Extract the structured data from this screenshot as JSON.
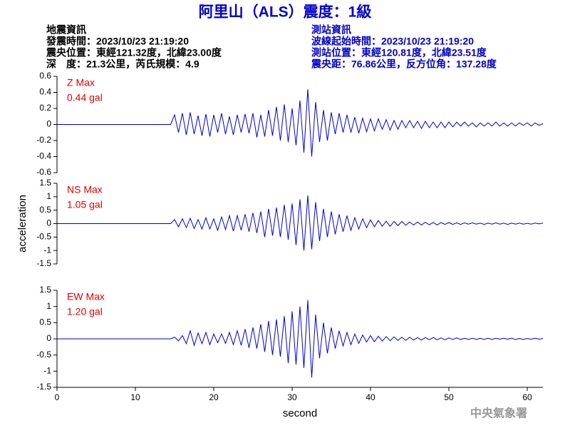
{
  "title": "阿里山（ALS）震度：1級",
  "event_info": [
    "地震資訊",
    "發震時間：2023/10/23 21:19:20",
    "震央位置：東經121.32度，北緯23.00度",
    "深　度：21.3公里，芮氏規模：4.9"
  ],
  "station_info": [
    "測站資訊",
    "波線起始時間：2023/10/23 21:19:20",
    "測站位置：東經120.81度，北緯23.51度",
    "震央距：76.86公里，反方位角：137.28度"
  ],
  "footer": "中央氣象署",
  "chart_data": [
    {
      "type": "line",
      "annotation": [
        "Z Max",
        "0.44 gal"
      ],
      "color": "#0000cc",
      "xlim": [
        0,
        62
      ],
      "ylim": [
        -0.6,
        0.6
      ],
      "yticks": [
        -0.6,
        -0.4,
        -0.2,
        0,
        0.2,
        0.4,
        0.6
      ],
      "x": [
        0,
        14.5,
        15,
        15.5,
        16,
        16.5,
        17,
        17.5,
        18,
        18.5,
        19,
        19.5,
        20,
        20.5,
        21,
        21.5,
        22,
        22.5,
        23,
        23.5,
        24,
        24.5,
        25,
        25.5,
        26,
        26.5,
        27,
        27.5,
        28,
        28.5,
        29,
        29.5,
        30,
        30.5,
        31,
        31.5,
        32,
        32.5,
        33,
        33.5,
        34,
        34.5,
        35,
        35.5,
        36,
        36.5,
        37,
        37.5,
        38,
        38.5,
        39,
        39.5,
        40,
        40.5,
        41,
        41.5,
        42,
        42.5,
        43,
        43.5,
        44,
        44.5,
        45,
        45.5,
        46,
        46.5,
        47,
        47.5,
        48,
        48.5,
        49,
        49.5,
        50,
        50.5,
        51,
        51.5,
        52,
        52.5,
        53,
        53.5,
        54,
        54.5,
        55,
        55.5,
        56,
        56.5,
        57,
        57.5,
        58,
        58.5,
        59,
        59.5,
        60,
        60.5,
        61,
        61.5,
        62
      ],
      "values": [
        0,
        0,
        0.12,
        -0.1,
        0.14,
        -0.13,
        0.15,
        -0.12,
        0.11,
        -0.14,
        0.13,
        -0.15,
        0.12,
        -0.1,
        0.14,
        -0.12,
        0.1,
        -0.13,
        0.12,
        -0.1,
        0.13,
        -0.11,
        0.14,
        -0.16,
        0.12,
        -0.15,
        0.18,
        -0.14,
        0.22,
        -0.2,
        0.25,
        -0.22,
        0.2,
        -0.26,
        0.3,
        -0.35,
        0.44,
        -0.4,
        0.28,
        -0.22,
        0.18,
        -0.2,
        0.15,
        -0.12,
        0.14,
        -0.1,
        0.12,
        -0.1,
        0.09,
        -0.11,
        0.08,
        -0.09,
        0.07,
        -0.08,
        0.07,
        -0.06,
        0.06,
        -0.07,
        0.05,
        -0.06,
        0.05,
        -0.04,
        0.05,
        -0.04,
        0.04,
        -0.05,
        0.04,
        -0.04,
        0.03,
        -0.04,
        0.03,
        -0.04,
        0.03,
        -0.03,
        0.03,
        -0.02,
        0.03,
        -0.02,
        0.02,
        -0.03,
        0.02,
        -0.02,
        0.02,
        -0.02,
        0.03,
        -0.02,
        0.02,
        -0.02,
        0.02,
        -0.02,
        0.02,
        -0.01,
        0.02,
        -0.02,
        0.02,
        -0.01,
        0.01
      ]
    },
    {
      "type": "line",
      "annotation": [
        "NS Max",
        "1.05 gal"
      ],
      "color": "#0000cc",
      "ylabel": "acceleration",
      "xlim": [
        0,
        62
      ],
      "ylim": [
        -1.5,
        1.5
      ],
      "yticks": [
        -1.5,
        -1,
        -0.5,
        0,
        0.5,
        1,
        1.5
      ],
      "x": [
        0,
        14.5,
        15,
        15.5,
        16,
        16.5,
        17,
        17.5,
        18,
        18.5,
        19,
        19.5,
        20,
        20.5,
        21,
        21.5,
        22,
        22.5,
        23,
        23.5,
        24,
        24.5,
        25,
        25.5,
        26,
        26.5,
        27,
        27.5,
        28,
        28.5,
        29,
        29.5,
        30,
        30.5,
        31,
        31.5,
        32,
        32.5,
        33,
        33.5,
        34,
        34.5,
        35,
        35.5,
        36,
        36.5,
        37,
        37.5,
        38,
        38.5,
        39,
        39.5,
        40,
        40.5,
        41,
        41.5,
        42,
        42.5,
        43,
        43.5,
        44,
        44.5,
        45,
        45.5,
        46,
        46.5,
        47,
        47.5,
        48,
        48.5,
        49,
        49.5,
        50,
        50.5,
        51,
        51.5,
        52,
        52.5,
        53,
        53.5,
        54,
        54.5,
        55,
        55.5,
        56,
        56.5,
        57,
        57.5,
        58,
        58.5,
        59,
        59.5,
        60,
        60.5,
        61,
        61.5,
        62
      ],
      "values": [
        0,
        0,
        0.15,
        -0.12,
        0.18,
        -0.15,
        0.2,
        -0.18,
        0.15,
        -0.2,
        0.22,
        -0.2,
        0.18,
        -0.25,
        0.25,
        -0.22,
        0.3,
        -0.28,
        0.3,
        -0.25,
        0.35,
        -0.3,
        0.4,
        -0.35,
        0.45,
        -0.5,
        0.55,
        -0.45,
        0.6,
        -0.5,
        0.7,
        -0.6,
        0.75,
        -0.8,
        0.9,
        -1.0,
        1.05,
        -0.95,
        0.8,
        -0.65,
        0.55,
        -0.5,
        0.45,
        -0.4,
        0.35,
        -0.3,
        0.3,
        -0.25,
        0.22,
        -0.2,
        0.18,
        -0.15,
        0.14,
        -0.12,
        0.12,
        -0.1,
        0.09,
        -0.1,
        0.08,
        -0.07,
        0.08,
        -0.06,
        0.06,
        -0.05,
        0.06,
        -0.05,
        0.05,
        -0.04,
        0.04,
        -0.05,
        0.04,
        -0.03,
        0.04,
        -0.03,
        0.03,
        -0.03,
        0.03,
        -0.02,
        0.03,
        -0.02,
        0.02,
        -0.03,
        0.02,
        -0.02,
        0.03,
        -0.02,
        0.02,
        -0.03,
        0.02,
        -0.02,
        0.02,
        -0.02,
        0.01,
        -0.02,
        0.02,
        -0.01,
        0.02
      ]
    },
    {
      "type": "line",
      "annotation": [
        "EW Max",
        "1.20 gal"
      ],
      "color": "#0000cc",
      "xlabel": "second",
      "xlim": [
        0,
        62
      ],
      "xticks": [
        0,
        10,
        20,
        30,
        40,
        50,
        60
      ],
      "ylim": [
        -1.5,
        1.5
      ],
      "yticks": [
        -1.5,
        -1,
        -0.5,
        0,
        0.5,
        1,
        1.5
      ],
      "x": [
        0,
        14.5,
        15,
        15.5,
        16,
        16.5,
        17,
        17.5,
        18,
        18.5,
        19,
        19.5,
        20,
        20.5,
        21,
        21.5,
        22,
        22.5,
        23,
        23.5,
        24,
        24.5,
        25,
        25.5,
        26,
        26.5,
        27,
        27.5,
        28,
        28.5,
        29,
        29.5,
        30,
        30.5,
        31,
        31.5,
        32,
        32.5,
        33,
        33.5,
        34,
        34.5,
        35,
        35.5,
        36,
        36.5,
        37,
        37.5,
        38,
        38.5,
        39,
        39.5,
        40,
        40.5,
        41,
        41.5,
        42,
        42.5,
        43,
        43.5,
        44,
        44.5,
        45,
        45.5,
        46,
        46.5,
        47,
        47.5,
        48,
        48.5,
        49,
        49.5,
        50,
        50.5,
        51,
        51.5,
        52,
        52.5,
        53,
        53.5,
        54,
        54.5,
        55,
        55.5,
        56,
        56.5,
        57,
        57.5,
        58,
        58.5,
        59,
        59.5,
        60,
        60.5,
        61,
        61.5,
        62
      ],
      "values": [
        0,
        0,
        0.05,
        -0.06,
        0.1,
        -0.15,
        0.25,
        -0.2,
        0.18,
        -0.15,
        0.2,
        -0.18,
        0.15,
        -0.12,
        0.15,
        -0.14,
        0.2,
        -0.18,
        0.25,
        -0.2,
        0.3,
        -0.28,
        0.35,
        -0.3,
        0.45,
        -0.4,
        0.55,
        -0.5,
        0.6,
        -0.55,
        0.7,
        -0.75,
        0.85,
        -0.8,
        1.0,
        -0.9,
        1.2,
        -1.2,
        0.75,
        -0.6,
        0.5,
        -0.45,
        0.35,
        -0.3,
        0.25,
        -0.22,
        0.2,
        -0.18,
        0.15,
        -0.14,
        0.12,
        -0.1,
        0.1,
        -0.09,
        0.08,
        -0.07,
        0.07,
        -0.06,
        0.06,
        -0.05,
        0.05,
        -0.05,
        0.05,
        -0.04,
        0.04,
        -0.04,
        0.04,
        -0.03,
        0.04,
        -0.03,
        0.03,
        -0.03,
        0.03,
        -0.02,
        0.03,
        -0.02,
        0.02,
        -0.02,
        0.02,
        -0.02,
        0.02,
        -0.02,
        0.02,
        -0.02,
        0.02,
        -0.01,
        0.02,
        -0.01,
        0.02,
        -0.02,
        0.01,
        -0.02,
        0.01,
        -0.01,
        0.02,
        -0.01,
        0.01
      ]
    }
  ]
}
